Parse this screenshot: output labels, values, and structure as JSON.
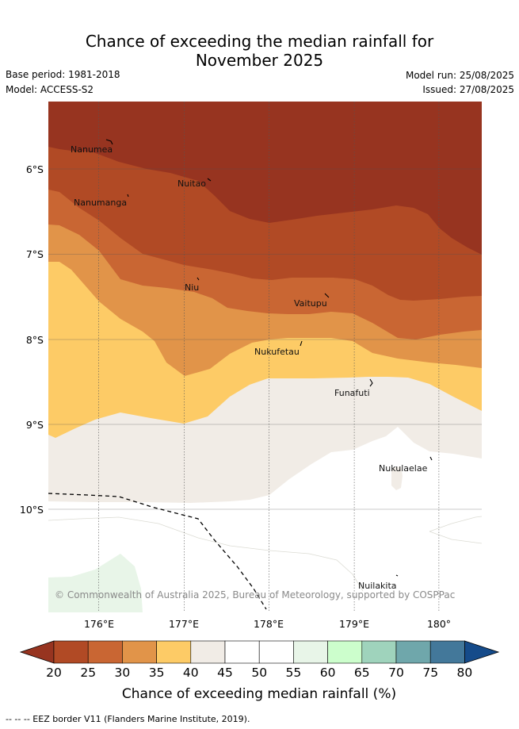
{
  "title_line1": "Chance of exceeding the median rainfall for",
  "title_line2": "November 2025",
  "base_period": "Base period: 1981-2018",
  "model": "Model: ACCESS-S2",
  "model_run": "Model run: 25/08/2025",
  "issued": "Issued: 27/08/2025",
  "map": {
    "latitude_labels": [
      "6°S",
      "7°S",
      "8°S",
      "9°S",
      "10°S"
    ],
    "longitude_labels": [
      "176°E",
      "177°E",
      "178°E",
      "179°E",
      "180°"
    ],
    "islands": [
      "Nanumea",
      "Nuitao",
      "Nanumanga",
      "Niu",
      "Vaitupu",
      "Nukufetau",
      "Funafuti",
      "Nukulaelae",
      "Nuilakita"
    ],
    "credit": "© Commonwealth of Australia 2025, Bureau of Meteorology, supported by COSPPac",
    "region_colors": {
      "lt20": "#973420",
      "20_25": "#b14a25",
      "25_30": "#c96633",
      "30_35": "#e19449",
      "35_40": "#fdcb66",
      "40_45": "#f1ece6",
      "50_55": "#ffffff",
      "55_60": "#e8f5e8"
    }
  },
  "colorbar": {
    "title": "Chance of exceeding median rainfall (%)",
    "ticks": [
      "20",
      "25",
      "30",
      "35",
      "40",
      "45",
      "50",
      "55",
      "60",
      "65",
      "70",
      "75",
      "80"
    ],
    "colors": [
      "#973420",
      "#b14a25",
      "#c96633",
      "#e19449",
      "#fdcb66",
      "#f1ece6",
      "#ffffff",
      "#ffffff",
      "#e8f5e8",
      "#ccfecc",
      "#9fd3bc",
      "#6fa7ab",
      "#43789a",
      "#154b8a"
    ]
  },
  "footnote": "-- -- -- EEZ border V11 (Flanders Marine Institute, 2019)."
}
